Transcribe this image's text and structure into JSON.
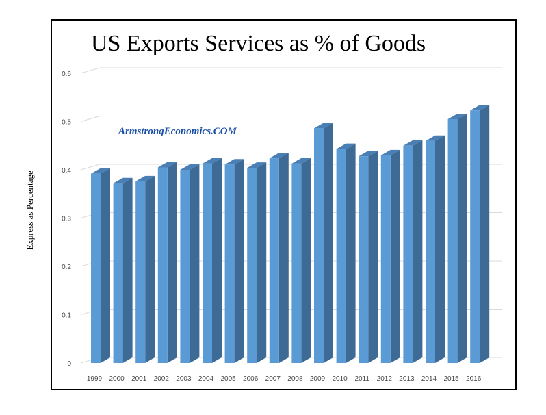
{
  "chart_data": {
    "type": "bar",
    "title": "US Exports Services as % of Goods",
    "ylabel": "Express as Percentage",
    "xlabel": "",
    "watermark": "ArmstrongEconomics.COM",
    "categories": [
      "1999",
      "2000",
      "2001",
      "2002",
      "2003",
      "2004",
      "2005",
      "2006",
      "2007",
      "2008",
      "2009",
      "2010",
      "2011",
      "2012",
      "2013",
      "2014",
      "2015",
      "2016"
    ],
    "values": [
      0.392,
      0.372,
      0.376,
      0.405,
      0.4,
      0.413,
      0.411,
      0.404,
      0.424,
      0.413,
      0.486,
      0.443,
      0.428,
      0.43,
      0.45,
      0.46,
      0.505,
      0.523
    ],
    "yticks": [
      "0",
      "0.1",
      "0.2",
      "0.3",
      "0.4",
      "0.5",
      "0.6"
    ],
    "ylim": [
      0,
      0.6
    ],
    "grid": true,
    "style": "3d-column",
    "colors": {
      "bar_front": "#5b9bd5",
      "bar_side": "#3e6a96",
      "bar_top": "#4a7fb5",
      "grid": "#d9d9d9"
    }
  }
}
